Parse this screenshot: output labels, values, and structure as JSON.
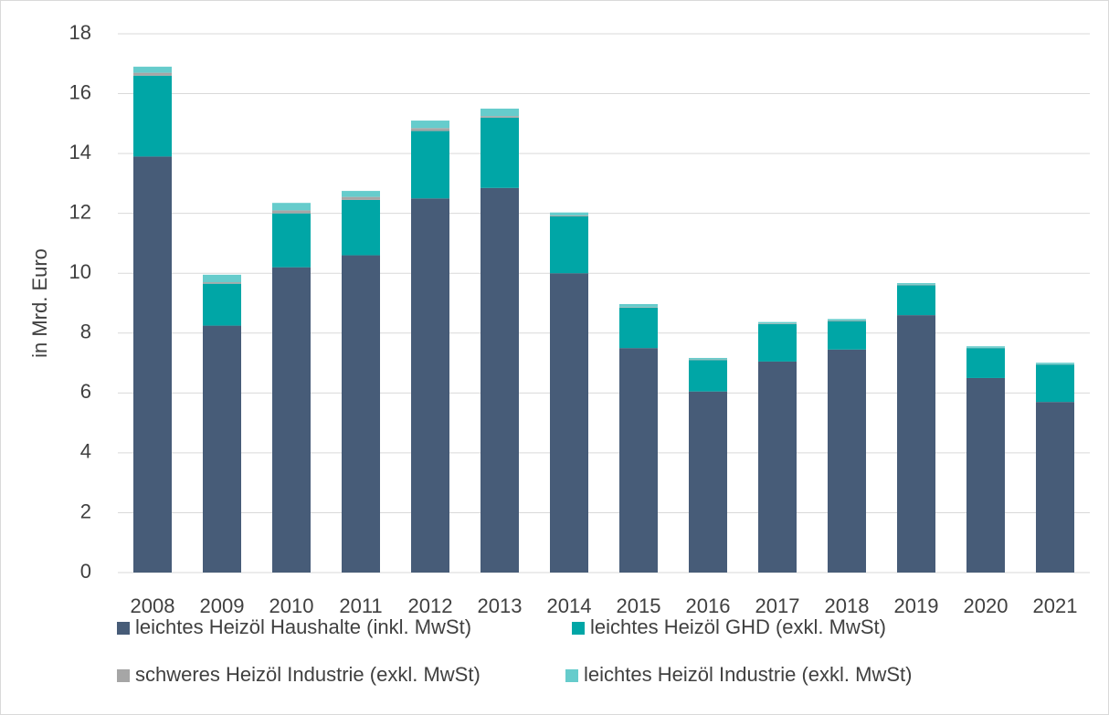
{
  "chart_data": {
    "type": "bar",
    "stacked": true,
    "y_label": "in Mrd. Euro",
    "categories": [
      "2008",
      "2009",
      "2010",
      "2011",
      "2012",
      "2013",
      "2014",
      "2015",
      "2016",
      "2017",
      "2018",
      "2019",
      "2020",
      "2021"
    ],
    "series": [
      {
        "name": "leichtes Heizöl Haushalte (inkl. MwSt)",
        "color": "#475c78",
        "values": [
          13.9,
          8.25,
          10.2,
          10.6,
          12.5,
          12.85,
          10.0,
          7.5,
          6.05,
          7.05,
          7.45,
          8.6,
          6.5,
          5.7
        ]
      },
      {
        "name": "leichtes Heizöl GHD (exkl. MwSt)",
        "color": "#00a6a6",
        "values": [
          2.7,
          1.4,
          1.8,
          1.85,
          2.25,
          2.35,
          1.9,
          1.35,
          1.05,
          1.25,
          0.95,
          1.0,
          1.0,
          1.25
        ]
      },
      {
        "name": "schweres Heizöl Industrie (exkl. MwSt)",
        "color": "#a6a6a6",
        "values": [
          0.1,
          0.05,
          0.1,
          0.1,
          0.1,
          0.05,
          0.03,
          0.02,
          0.02,
          0.02,
          0.02,
          0.02,
          0.01,
          0.01
        ]
      },
      {
        "name": "leichtes Heizöl Industrie (exkl. MwSt)",
        "color": "#66cccc",
        "values": [
          0.2,
          0.25,
          0.25,
          0.2,
          0.25,
          0.25,
          0.1,
          0.1,
          0.05,
          0.05,
          0.05,
          0.05,
          0.05,
          0.05
        ]
      }
    ],
    "ylim": [
      0,
      18
    ],
    "yticks": [
      0,
      2,
      4,
      6,
      8,
      10,
      12,
      14,
      16,
      18
    ],
    "grid": true,
    "legend": "bottom"
  }
}
